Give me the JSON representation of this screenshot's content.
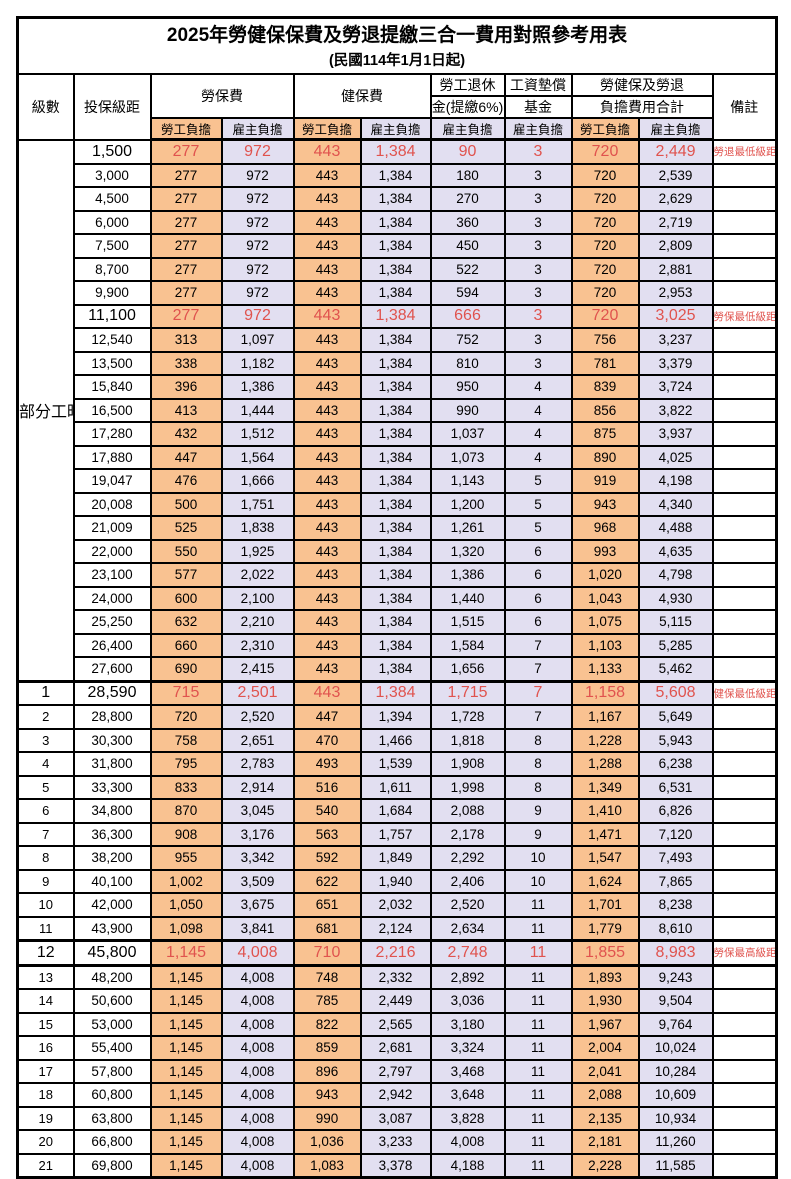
{
  "title": "2025年勞健保保費及勞退提繳三合一費用對照參考用表",
  "subtitle": "(民國114年1月1日起)",
  "colors": {
    "employee_column_bg": "#F9C291",
    "employer_column_bg": "#E2DFF1",
    "highlight_text": "#E0534E",
    "border": "#000000"
  },
  "header": {
    "level": "級數",
    "bracket": "投保級距",
    "labor_ins": "勞保費",
    "health_ins": "健保費",
    "pension_line1": "勞工退休",
    "pension_line2": "金(提繳6%)",
    "wage_fund_line1": "工資墊償",
    "wage_fund_line2": "基金",
    "total_line1": "勞健保及勞退",
    "total_line2": "負擔費用合計",
    "employee": "勞工負擔",
    "employer": "雇主負擔",
    "remark": "備註"
  },
  "rows": [
    {
      "level": "部分工時",
      "rowspan": 23,
      "bracket": "1,500",
      "v": [
        "277",
        "972",
        "443",
        "1,384",
        "90",
        "3",
        "720",
        "2,449"
      ],
      "remark": "勞退最低級距",
      "hl": true
    },
    {
      "bracket": "3,000",
      "v": [
        "277",
        "972",
        "443",
        "1,384",
        "180",
        "3",
        "720",
        "2,539"
      ],
      "remark": ""
    },
    {
      "bracket": "4,500",
      "v": [
        "277",
        "972",
        "443",
        "1,384",
        "270",
        "3",
        "720",
        "2,629"
      ],
      "remark": ""
    },
    {
      "bracket": "6,000",
      "v": [
        "277",
        "972",
        "443",
        "1,384",
        "360",
        "3",
        "720",
        "2,719"
      ],
      "remark": ""
    },
    {
      "bracket": "7,500",
      "v": [
        "277",
        "972",
        "443",
        "1,384",
        "450",
        "3",
        "720",
        "2,809"
      ],
      "remark": ""
    },
    {
      "bracket": "8,700",
      "v": [
        "277",
        "972",
        "443",
        "1,384",
        "522",
        "3",
        "720",
        "2,881"
      ],
      "remark": ""
    },
    {
      "bracket": "9,900",
      "v": [
        "277",
        "972",
        "443",
        "1,384",
        "594",
        "3",
        "720",
        "2,953"
      ],
      "remark": ""
    },
    {
      "bracket": "11,100",
      "v": [
        "277",
        "972",
        "443",
        "1,384",
        "666",
        "3",
        "720",
        "3,025"
      ],
      "remark": "勞保最低級距",
      "hl": true
    },
    {
      "bracket": "12,540",
      "v": [
        "313",
        "1,097",
        "443",
        "1,384",
        "752",
        "3",
        "756",
        "3,237"
      ],
      "remark": ""
    },
    {
      "bracket": "13,500",
      "v": [
        "338",
        "1,182",
        "443",
        "1,384",
        "810",
        "3",
        "781",
        "3,379"
      ],
      "remark": ""
    },
    {
      "bracket": "15,840",
      "v": [
        "396",
        "1,386",
        "443",
        "1,384",
        "950",
        "4",
        "839",
        "3,724"
      ],
      "remark": ""
    },
    {
      "bracket": "16,500",
      "v": [
        "413",
        "1,444",
        "443",
        "1,384",
        "990",
        "4",
        "856",
        "3,822"
      ],
      "remark": ""
    },
    {
      "bracket": "17,280",
      "v": [
        "432",
        "1,512",
        "443",
        "1,384",
        "1,037",
        "4",
        "875",
        "3,937"
      ],
      "remark": ""
    },
    {
      "bracket": "17,880",
      "v": [
        "447",
        "1,564",
        "443",
        "1,384",
        "1,073",
        "4",
        "890",
        "4,025"
      ],
      "remark": ""
    },
    {
      "bracket": "19,047",
      "v": [
        "476",
        "1,666",
        "443",
        "1,384",
        "1,143",
        "5",
        "919",
        "4,198"
      ],
      "remark": ""
    },
    {
      "bracket": "20,008",
      "v": [
        "500",
        "1,751",
        "443",
        "1,384",
        "1,200",
        "5",
        "943",
        "4,340"
      ],
      "remark": ""
    },
    {
      "bracket": "21,009",
      "v": [
        "525",
        "1,838",
        "443",
        "1,384",
        "1,261",
        "5",
        "968",
        "4,488"
      ],
      "remark": ""
    },
    {
      "bracket": "22,000",
      "v": [
        "550",
        "1,925",
        "443",
        "1,384",
        "1,320",
        "6",
        "993",
        "4,635"
      ],
      "remark": ""
    },
    {
      "bracket": "23,100",
      "v": [
        "577",
        "2,022",
        "443",
        "1,384",
        "1,386",
        "6",
        "1,020",
        "4,798"
      ],
      "remark": ""
    },
    {
      "bracket": "24,000",
      "v": [
        "600",
        "2,100",
        "443",
        "1,384",
        "1,440",
        "6",
        "1,043",
        "4,930"
      ],
      "remark": ""
    },
    {
      "bracket": "25,250",
      "v": [
        "632",
        "2,210",
        "443",
        "1,384",
        "1,515",
        "6",
        "1,075",
        "5,115"
      ],
      "remark": ""
    },
    {
      "bracket": "26,400",
      "v": [
        "660",
        "2,310",
        "443",
        "1,384",
        "1,584",
        "7",
        "1,103",
        "5,285"
      ],
      "remark": ""
    },
    {
      "bracket": "27,600",
      "v": [
        "690",
        "2,415",
        "443",
        "1,384",
        "1,656",
        "7",
        "1,133",
        "5,462"
      ],
      "remark": ""
    },
    {
      "level": "1",
      "bracket": "28,590",
      "v": [
        "715",
        "2,501",
        "443",
        "1,384",
        "1,715",
        "7",
        "1,158",
        "5,608"
      ],
      "remark": "健保最低級距",
      "hl": true,
      "thick_top": true
    },
    {
      "level": "2",
      "bracket": "28,800",
      "v": [
        "720",
        "2,520",
        "447",
        "1,394",
        "1,728",
        "7",
        "1,167",
        "5,649"
      ],
      "remark": ""
    },
    {
      "level": "3",
      "bracket": "30,300",
      "v": [
        "758",
        "2,651",
        "470",
        "1,466",
        "1,818",
        "8",
        "1,228",
        "5,943"
      ],
      "remark": ""
    },
    {
      "level": "4",
      "bracket": "31,800",
      "v": [
        "795",
        "2,783",
        "493",
        "1,539",
        "1,908",
        "8",
        "1,288",
        "6,238"
      ],
      "remark": ""
    },
    {
      "level": "5",
      "bracket": "33,300",
      "v": [
        "833",
        "2,914",
        "516",
        "1,611",
        "1,998",
        "8",
        "1,349",
        "6,531"
      ],
      "remark": ""
    },
    {
      "level": "6",
      "bracket": "34,800",
      "v": [
        "870",
        "3,045",
        "540",
        "1,684",
        "2,088",
        "9",
        "1,410",
        "6,826"
      ],
      "remark": ""
    },
    {
      "level": "7",
      "bracket": "36,300",
      "v": [
        "908",
        "3,176",
        "563",
        "1,757",
        "2,178",
        "9",
        "1,471",
        "7,120"
      ],
      "remark": ""
    },
    {
      "level": "8",
      "bracket": "38,200",
      "v": [
        "955",
        "3,342",
        "592",
        "1,849",
        "2,292",
        "10",
        "1,547",
        "7,493"
      ],
      "remark": ""
    },
    {
      "level": "9",
      "bracket": "40,100",
      "v": [
        "1,002",
        "3,509",
        "622",
        "1,940",
        "2,406",
        "10",
        "1,624",
        "7,865"
      ],
      "remark": ""
    },
    {
      "level": "10",
      "bracket": "42,000",
      "v": [
        "1,050",
        "3,675",
        "651",
        "2,032",
        "2,520",
        "11",
        "1,701",
        "8,238"
      ],
      "remark": ""
    },
    {
      "level": "11",
      "bracket": "43,900",
      "v": [
        "1,098",
        "3,841",
        "681",
        "2,124",
        "2,634",
        "11",
        "1,779",
        "8,610"
      ],
      "remark": ""
    },
    {
      "level": "12",
      "bracket": "45,800",
      "v": [
        "1,145",
        "4,008",
        "710",
        "2,216",
        "2,748",
        "11",
        "1,855",
        "8,983"
      ],
      "remark": "勞保最高級距",
      "hl": true,
      "thick_top": true,
      "thick_bottom": true
    },
    {
      "level": "13",
      "bracket": "48,200",
      "v": [
        "1,145",
        "4,008",
        "748",
        "2,332",
        "2,892",
        "11",
        "1,893",
        "9,243"
      ],
      "remark": ""
    },
    {
      "level": "14",
      "bracket": "50,600",
      "v": [
        "1,145",
        "4,008",
        "785",
        "2,449",
        "3,036",
        "11",
        "1,930",
        "9,504"
      ],
      "remark": ""
    },
    {
      "level": "15",
      "bracket": "53,000",
      "v": [
        "1,145",
        "4,008",
        "822",
        "2,565",
        "3,180",
        "11",
        "1,967",
        "9,764"
      ],
      "remark": ""
    },
    {
      "level": "16",
      "bracket": "55,400",
      "v": [
        "1,145",
        "4,008",
        "859",
        "2,681",
        "3,324",
        "11",
        "2,004",
        "10,024"
      ],
      "remark": ""
    },
    {
      "level": "17",
      "bracket": "57,800",
      "v": [
        "1,145",
        "4,008",
        "896",
        "2,797",
        "3,468",
        "11",
        "2,041",
        "10,284"
      ],
      "remark": ""
    },
    {
      "level": "18",
      "bracket": "60,800",
      "v": [
        "1,145",
        "4,008",
        "943",
        "2,942",
        "3,648",
        "11",
        "2,088",
        "10,609"
      ],
      "remark": ""
    },
    {
      "level": "19",
      "bracket": "63,800",
      "v": [
        "1,145",
        "4,008",
        "990",
        "3,087",
        "3,828",
        "11",
        "2,135",
        "10,934"
      ],
      "remark": ""
    },
    {
      "level": "20",
      "bracket": "66,800",
      "v": [
        "1,145",
        "4,008",
        "1,036",
        "3,233",
        "4,008",
        "11",
        "2,181",
        "11,260"
      ],
      "remark": ""
    },
    {
      "level": "21",
      "bracket": "69,800",
      "v": [
        "1,145",
        "4,008",
        "1,083",
        "3,378",
        "4,188",
        "11",
        "2,228",
        "11,585"
      ],
      "remark": ""
    }
  ]
}
